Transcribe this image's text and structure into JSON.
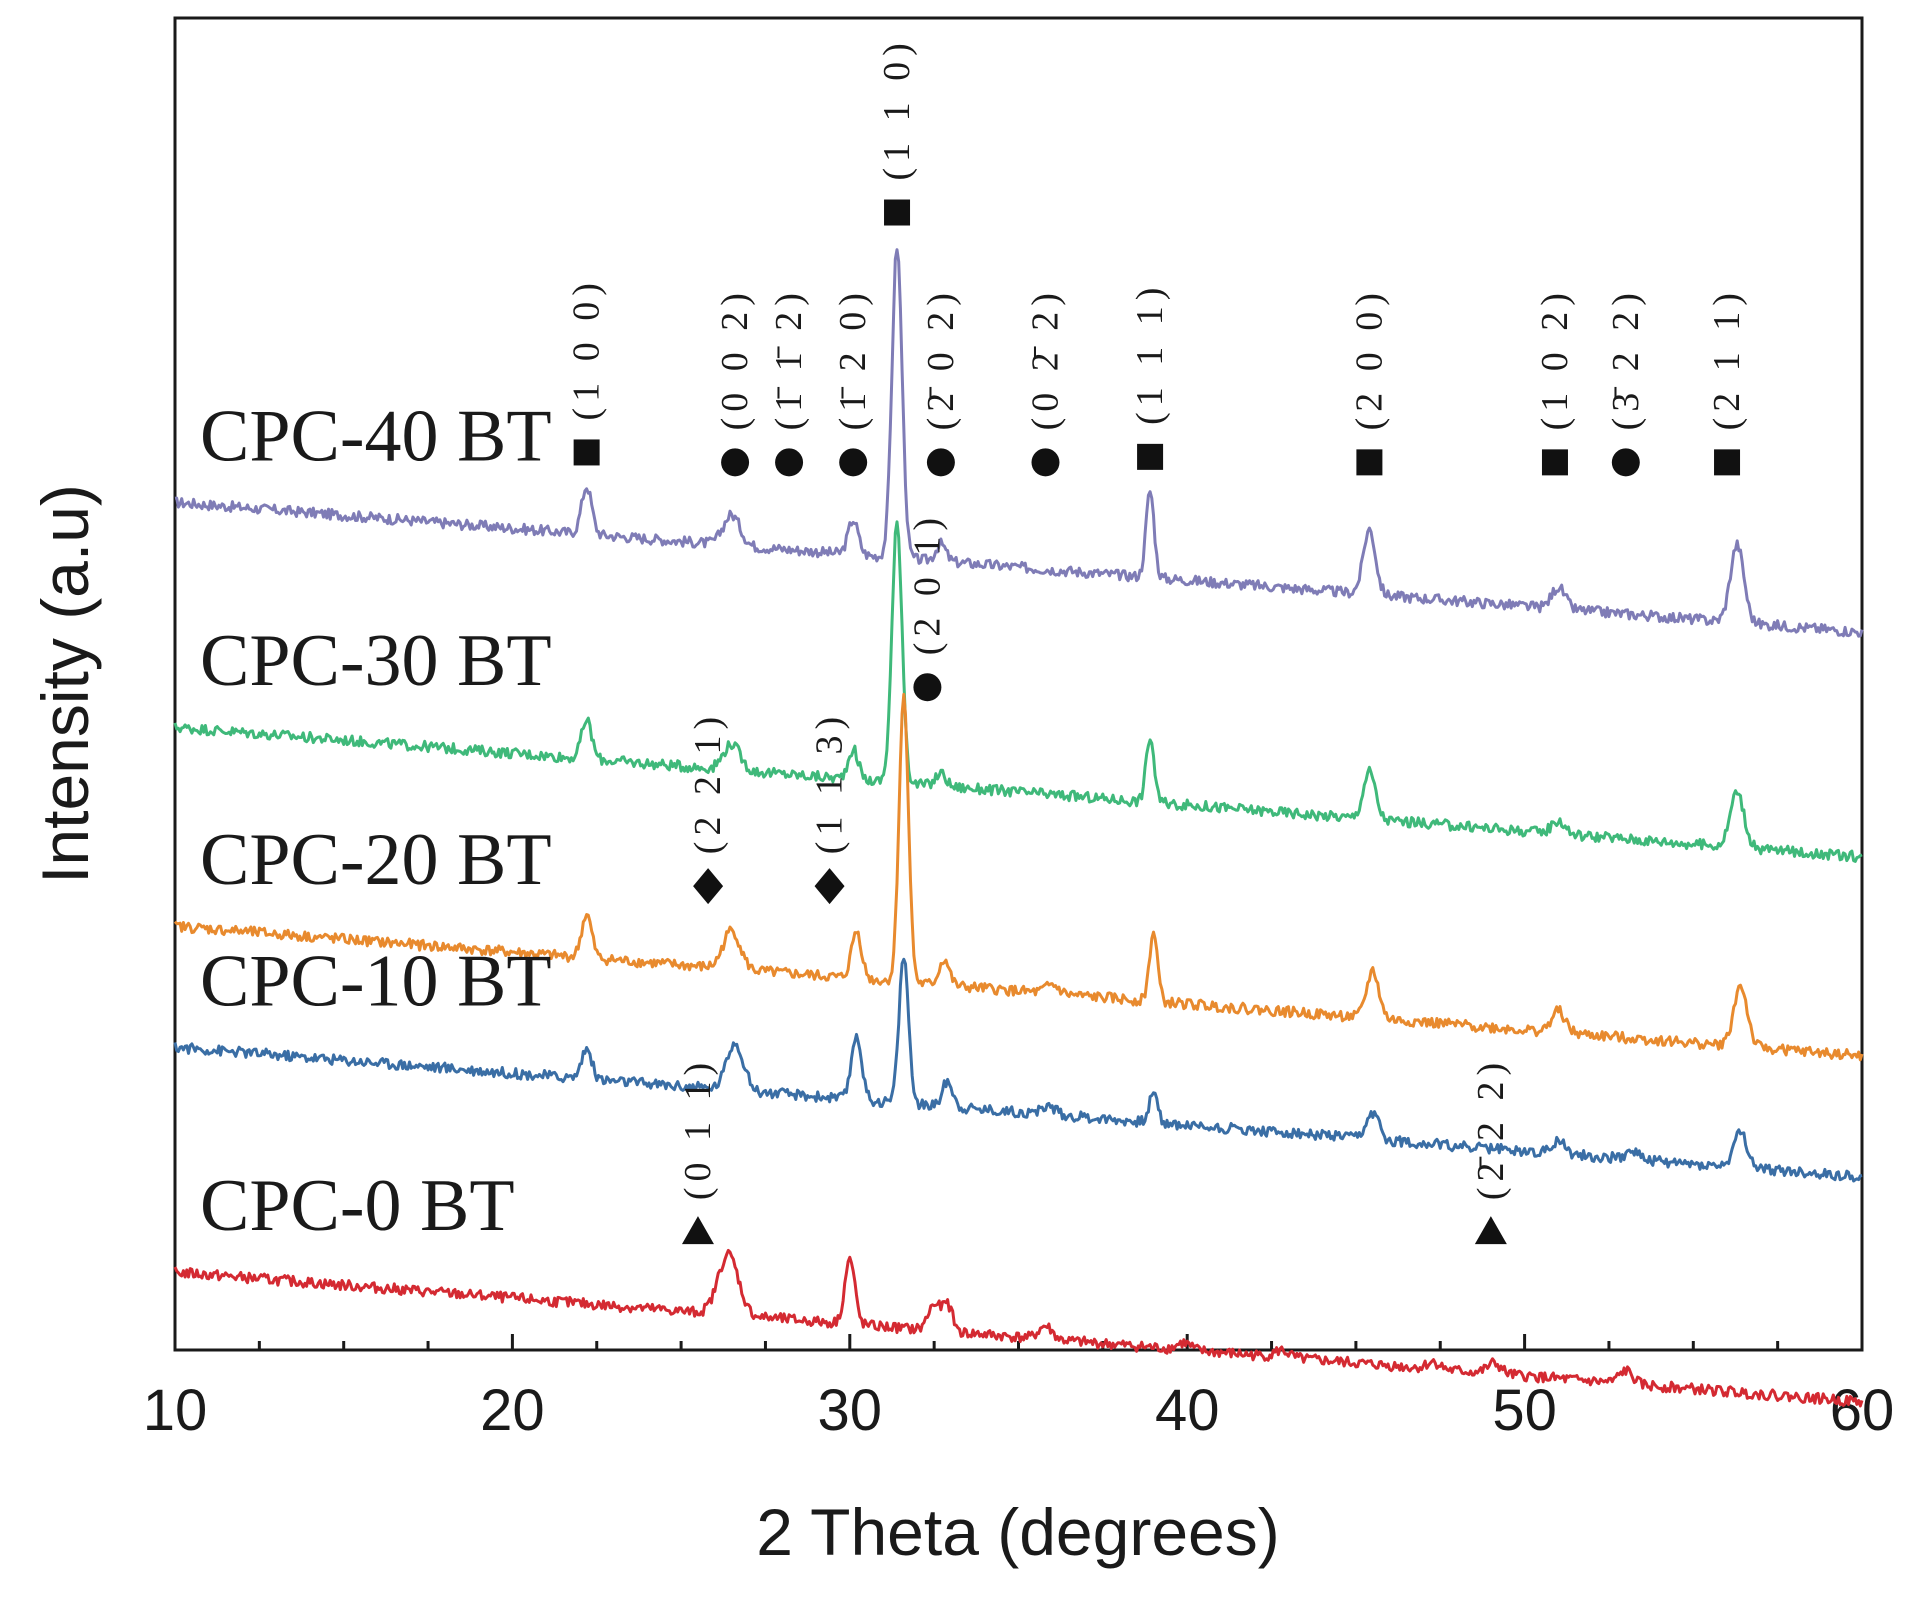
{
  "chart_data": {
    "type": "line",
    "title": "",
    "xlabel": "2 Theta (degrees)",
    "ylabel": "Intensity (a.u)",
    "xlim": [
      10,
      60
    ],
    "xticks": [
      "10",
      "20",
      "30",
      "40",
      "50",
      "60"
    ],
    "yticks": [],
    "series": [
      {
        "name": "CPC-40 BT",
        "color": "#7f7cb6",
        "baseline": 9.2,
        "peaks": [
          [
            22.2,
            0.55,
            0.15
          ],
          [
            26.5,
            0.35,
            0.25
          ],
          [
            30.1,
            0.4,
            0.15
          ],
          [
            31.4,
            3.6,
            0.15
          ],
          [
            32.7,
            0.2,
            0.15
          ],
          [
            38.9,
            1.0,
            0.12
          ],
          [
            45.4,
            0.75,
            0.18
          ],
          [
            51.0,
            0.25,
            0.2
          ],
          [
            56.3,
            0.9,
            0.2
          ]
        ],
        "markers": [
          {
            "x": 22.2,
            "symbol": "square",
            "hkl": "(1 0 0)"
          },
          {
            "x": 26.6,
            "symbol": "circle",
            "hkl": "(0 0 2)"
          },
          {
            "x": 28.2,
            "symbol": "circle",
            "hkl": "(1̄ 1̄ 2)"
          },
          {
            "x": 30.1,
            "symbol": "circle",
            "hkl": "(1̄ 2 0)"
          },
          {
            "x": 31.4,
            "symbol": "square",
            "hkl": "(1 1 0)"
          },
          {
            "x": 32.7,
            "symbol": "circle",
            "hkl": "(2̄ 0 2)"
          },
          {
            "x": 35.8,
            "symbol": "circle",
            "hkl": "(0 2̄ 2)"
          },
          {
            "x": 38.9,
            "symbol": "square",
            "hkl": "(1 1 1)"
          },
          {
            "x": 45.4,
            "symbol": "square",
            "hkl": "(2 0 0)"
          },
          {
            "x": 50.9,
            "symbol": "square",
            "hkl": "(1 0 2)"
          },
          {
            "x": 53.0,
            "symbol": "circle",
            "hkl": "(3̄ 2 2)"
          },
          {
            "x": 56.0,
            "symbol": "square",
            "hkl": "(2 1 1)"
          }
        ]
      },
      {
        "name": "CPC-30 BT",
        "color": "#3fb97a",
        "baseline": 6.6,
        "peaks": [
          [
            22.2,
            0.45,
            0.15
          ],
          [
            26.5,
            0.3,
            0.25
          ],
          [
            30.1,
            0.35,
            0.15
          ],
          [
            31.4,
            3.0,
            0.15
          ],
          [
            32.7,
            0.15,
            0.15
          ],
          [
            38.9,
            0.75,
            0.12
          ],
          [
            45.4,
            0.55,
            0.18
          ],
          [
            51.0,
            0.15,
            0.2
          ],
          [
            56.3,
            0.65,
            0.2
          ]
        ],
        "markers": [
          {
            "x": 32.3,
            "symbol": "circle",
            "hkl": "(2 0 1)"
          }
        ]
      },
      {
        "name": "CPC-20 BT",
        "color": "#e88a2e",
        "baseline": 4.3,
        "peaks": [
          [
            22.2,
            0.5,
            0.15
          ],
          [
            26.5,
            0.45,
            0.25
          ],
          [
            30.2,
            0.55,
            0.15
          ],
          [
            31.6,
            3.3,
            0.14
          ],
          [
            32.8,
            0.3,
            0.15
          ],
          [
            36.0,
            0.1,
            0.2
          ],
          [
            39.0,
            0.8,
            0.12
          ],
          [
            45.5,
            0.55,
            0.18
          ],
          [
            51.0,
            0.25,
            0.2
          ],
          [
            56.4,
            0.7,
            0.2
          ]
        ],
        "markers": [
          {
            "x": 25.8,
            "symbol": "diamond",
            "hkl": "(2 2 1)"
          },
          {
            "x": 29.4,
            "symbol": "diamond",
            "hkl": "(1 1 3)"
          }
        ]
      },
      {
        "name": "CPC-10 BT",
        "color": "#3a6ea5",
        "baseline": 2.9,
        "peaks": [
          [
            22.2,
            0.35,
            0.15
          ],
          [
            26.6,
            0.55,
            0.25
          ],
          [
            30.2,
            0.75,
            0.15
          ],
          [
            31.6,
            1.7,
            0.14
          ],
          [
            32.9,
            0.3,
            0.15
          ],
          [
            35.9,
            0.1,
            0.2
          ],
          [
            39.0,
            0.35,
            0.12
          ],
          [
            45.5,
            0.3,
            0.18
          ],
          [
            51.0,
            0.15,
            0.2
          ],
          [
            53.2,
            0.1,
            0.2
          ],
          [
            56.4,
            0.4,
            0.2
          ]
        ],
        "markers": []
      },
      {
        "name": "CPC-0 BT",
        "color": "#d42a32",
        "baseline": 0.3,
        "peaks": [
          [
            26.4,
            0.7,
            0.3
          ],
          [
            30.0,
            0.75,
            0.15
          ],
          [
            32.5,
            0.3,
            0.18
          ],
          [
            32.9,
            0.3,
            0.15
          ],
          [
            35.8,
            0.15,
            0.2
          ],
          [
            39.9,
            0.08,
            0.2
          ],
          [
            42.8,
            0.08,
            0.2
          ],
          [
            47.3,
            0.08,
            0.2
          ],
          [
            49.1,
            0.12,
            0.2
          ],
          [
            53.0,
            0.15,
            0.2
          ]
        ],
        "markers": [
          {
            "x": 25.5,
            "symbol": "triangle",
            "hkl": "(0 1 1)"
          },
          {
            "x": 49.0,
            "symbol": "triangle",
            "hkl": "(2̄ 2 2)"
          }
        ]
      }
    ]
  }
}
